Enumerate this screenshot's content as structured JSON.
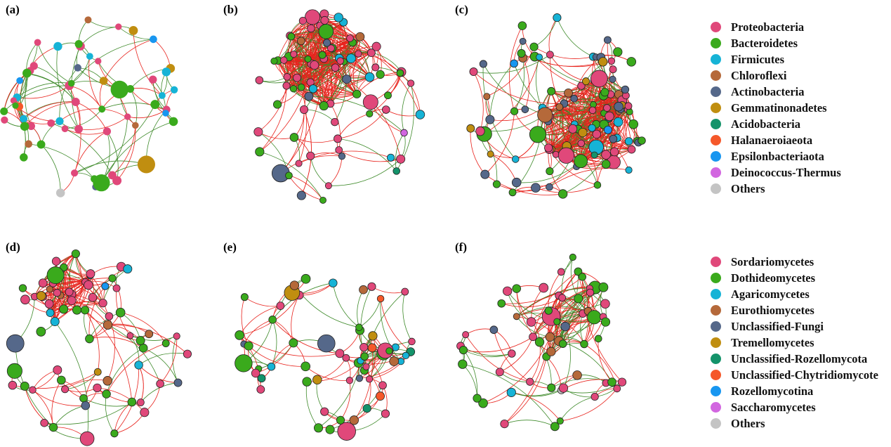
{
  "panels": [
    {
      "label": "(a)"
    },
    {
      "label": "(b)"
    },
    {
      "label": "(c)"
    },
    {
      "label": "(d)"
    },
    {
      "label": "(e)"
    },
    {
      "label": "(f)"
    }
  ],
  "edge_colors": {
    "positive": "#e8231d",
    "negative": "#3e8a2a"
  },
  "legend_bacteria": [
    {
      "label": "Proteobacteria",
      "color": "#e0487a"
    },
    {
      "label": "Bacteroidetes",
      "color": "#3aaa1c"
    },
    {
      "label": "Firmicutes",
      "color": "#16b3d6"
    },
    {
      "label": "Chloroflexi",
      "color": "#b5693a"
    },
    {
      "label": "Actinobacteria",
      "color": "#55688a"
    },
    {
      "label": "Gemmatinonadetes",
      "color": "#c08e10"
    },
    {
      "label": "Acidobacteria",
      "color": "#14936a"
    },
    {
      "label": "Halanaeroiaeota",
      "color": "#f5582a"
    },
    {
      "label": "Epsilonbacteriaota",
      "color": "#1896f0"
    },
    {
      "label": "Deinococcus-Thermus",
      "color": "#d266e0"
    },
    {
      "label": "Others",
      "color": "#c4c4c4"
    }
  ],
  "legend_fungi": [
    {
      "label": "Sordariomycetes",
      "color": "#e0487a"
    },
    {
      "label": "Dothideomycetes",
      "color": "#3aaa1c"
    },
    {
      "label": "Agaricomycetes",
      "color": "#16b3d6"
    },
    {
      "label": "Eurothiomycetes",
      "color": "#b5693a"
    },
    {
      "label": "Unclassified-Fungi",
      "color": "#55688a"
    },
    {
      "label": "Tremellomycetes",
      "color": "#c08e10"
    },
    {
      "label": "Unclassified-Rozellomycota",
      "color": "#14936a"
    },
    {
      "label": "Unclassified-Chytridiomycote",
      "color": "#f5582a"
    },
    {
      "label": "Rozellomycotina",
      "color": "#1896f0"
    },
    {
      "label": "Saccharomycetes",
      "color": "#d266e0"
    },
    {
      "label": "Others",
      "color": "#c4c4c4"
    }
  ]
}
